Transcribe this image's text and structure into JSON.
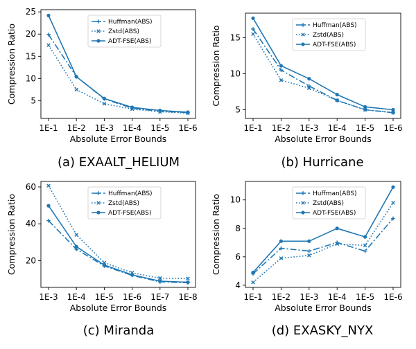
{
  "colors": {
    "series": "#1f77b4",
    "axis": "#000000",
    "legend_border": "#cccccc",
    "background": "#ffffff"
  },
  "chart_data": [
    {
      "type": "line",
      "caption": "(a) EXAALT_HELIUM",
      "xlabel": "Absolute Error Bounds",
      "ylabel": "Compression Ratio",
      "categories": [
        "1E-1",
        "1E-2",
        "1E-3",
        "1E-4",
        "1E-5",
        "1E-6"
      ],
      "ylim": [
        1,
        25.5
      ],
      "yticks": [
        5,
        10,
        15,
        20,
        25
      ],
      "legend_placement": "top-right",
      "series": [
        {
          "name": "Huffman(ABS)",
          "style": "dashdot",
          "marker": "plus",
          "values": [
            19.9,
            10.4,
            5.4,
            3.3,
            2.6,
            2.3
          ]
        },
        {
          "name": "Zstd(ABS)",
          "style": "dotted",
          "marker": "x",
          "values": [
            17.5,
            7.5,
            4.3,
            3.1,
            2.5,
            2.2
          ]
        },
        {
          "name": "ADT-FSE(ABS)",
          "style": "solid",
          "marker": "dot",
          "values": [
            24.2,
            10.4,
            5.5,
            3.5,
            2.8,
            2.4
          ]
        }
      ]
    },
    {
      "type": "line",
      "caption": "(b) Hurricane",
      "xlabel": "Absolute Error Bounds",
      "ylabel": "Compression Ratio",
      "categories": [
        "1E-1",
        "1E-2",
        "1E-3",
        "1E-4",
        "1E-5",
        "1E-6"
      ],
      "ylim": [
        3.8,
        18.4
      ],
      "yticks": [
        5,
        10,
        15
      ],
      "legend_placement": "top-right",
      "series": [
        {
          "name": "Huffman(ABS)",
          "style": "dashdot",
          "marker": "plus",
          "values": [
            16.2,
            10.5,
            8.3,
            6.3,
            5.0,
            4.6
          ]
        },
        {
          "name": "Zstd(ABS)",
          "style": "dotted",
          "marker": "x",
          "values": [
            15.5,
            9.1,
            8.0,
            6.3,
            5.0,
            4.6
          ]
        },
        {
          "name": "ADT-FSE(ABS)",
          "style": "solid",
          "marker": "dot",
          "values": [
            17.7,
            11.1,
            9.3,
            7.1,
            5.4,
            5.0
          ]
        }
      ]
    },
    {
      "type": "line",
      "caption": "(c) Miranda",
      "xlabel": "Absolute Error Bounds",
      "ylabel": "Compression Ratio",
      "categories": [
        "1E-3",
        "1E-4",
        "1E-5",
        "1E-6",
        "1E-7",
        "1E-8"
      ],
      "ylim": [
        5.5,
        63
      ],
      "yticks": [
        20,
        40,
        60
      ],
      "legend_placement": "top-right",
      "series": [
        {
          "name": "Huffman(ABS)",
          "style": "dashdot",
          "marker": "plus",
          "values": [
            41.7,
            26.2,
            17.1,
            12.0,
            8.5,
            8.0
          ]
        },
        {
          "name": "Zstd(ABS)",
          "style": "dotted",
          "marker": "x",
          "values": [
            60.7,
            34.0,
            18.9,
            13.4,
            10.5,
            10.3
          ]
        },
        {
          "name": "ADT-FSE(ABS)",
          "style": "solid",
          "marker": "dot",
          "values": [
            49.8,
            27.6,
            17.6,
            12.3,
            8.9,
            8.3
          ]
        }
      ]
    },
    {
      "type": "line",
      "caption": "(d) EXASKY_NYX",
      "xlabel": "Absolute Error Bounds",
      "ylabel": "Compression Ratio",
      "categories": [
        "1E-1",
        "1E-2",
        "1E-3",
        "1E-4",
        "1E-5",
        "1E-6"
      ],
      "ylim": [
        3.85,
        11.3
      ],
      "yticks": [
        4,
        6,
        8,
        10
      ],
      "legend_placement": "top-right",
      "series": [
        {
          "name": "Huffman(ABS)",
          "style": "dashdot",
          "marker": "plus",
          "values": [
            4.8,
            6.6,
            6.4,
            7.0,
            6.4,
            8.7
          ]
        },
        {
          "name": "Zstd(ABS)",
          "style": "dotted",
          "marker": "x",
          "values": [
            4.2,
            5.9,
            6.1,
            6.9,
            6.8,
            9.8
          ]
        },
        {
          "name": "ADT-FSE(ABS)",
          "style": "solid",
          "marker": "dot",
          "values": [
            4.9,
            7.1,
            7.1,
            8.0,
            7.4,
            10.9
          ]
        }
      ]
    }
  ]
}
